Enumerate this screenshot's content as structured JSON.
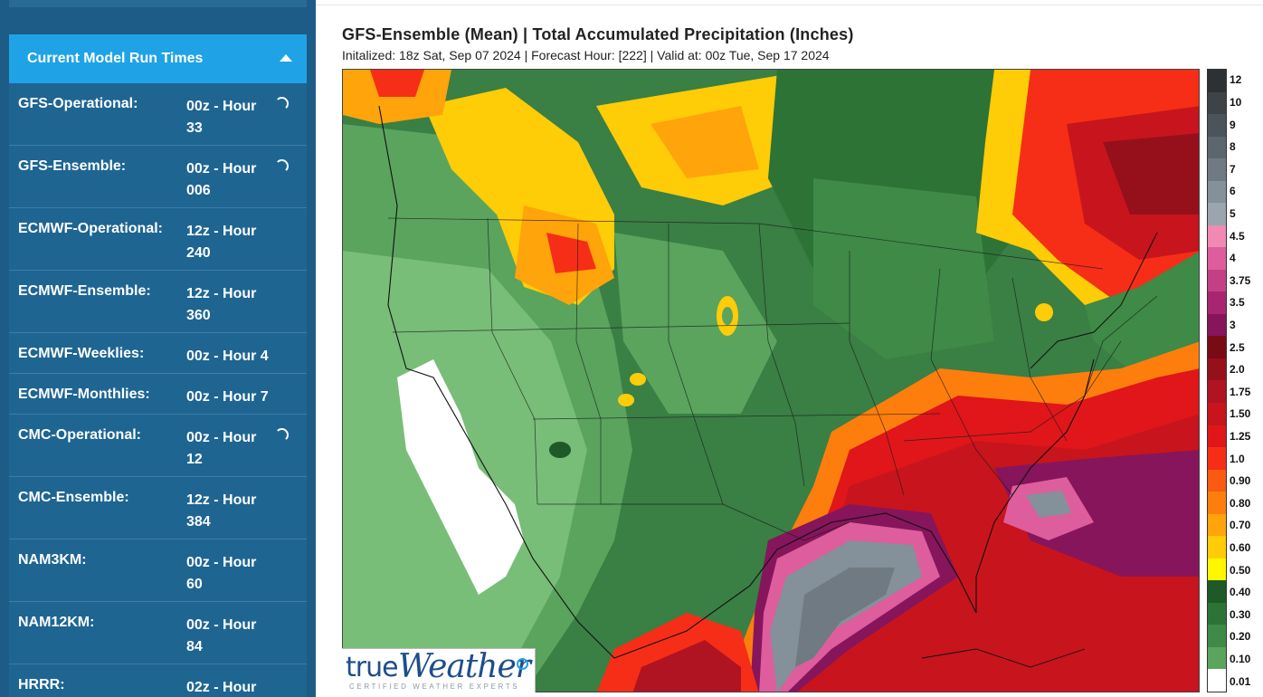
{
  "sidebar": {
    "panel_title": "Current Model Run Times",
    "rows": [
      {
        "name": "GFS-Operational:",
        "value": "00z - Hour 33",
        "loading": true
      },
      {
        "name": "GFS-Ensemble:",
        "value": "00z - Hour 006",
        "loading": true
      },
      {
        "name": "ECMWF-Operational:",
        "value": "12z - Hour 240",
        "loading": false
      },
      {
        "name": "ECMWF-Ensemble:",
        "value": "12z - Hour 360",
        "loading": false
      },
      {
        "name": "ECMWF-Weeklies:",
        "value": "00z - Hour 4",
        "loading": false
      },
      {
        "name": "ECMWF-Monthlies:",
        "value": "00z - Hour 7",
        "loading": false
      },
      {
        "name": "CMC-Operational:",
        "value": "00z - Hour 12",
        "loading": true
      },
      {
        "name": "CMC-Ensemble:",
        "value": "12z - Hour 384",
        "loading": false
      },
      {
        "name": "NAM3KM:",
        "value": "00z - Hour 60",
        "loading": false
      },
      {
        "name": "NAM12KM:",
        "value": "00z - Hour 84",
        "loading": false
      },
      {
        "name": "HRRR:",
        "value": "02z - Hour",
        "loading": false
      }
    ]
  },
  "map": {
    "title": "GFS-Ensemble (Mean) | Total Accumulated Precipitation (Inches)",
    "subtitle": "Initalized: 18z Sat, Sep 07 2024 | Forecast Hour: [222] | Valid at: 00z Tue, Sep 17 2024",
    "logo_word1": "true",
    "logo_word2": "Weather",
    "logo_tagline": "CERTIFIED WEATHER EXPERTS"
  },
  "legend": [
    {
      "label": "12",
      "color": "#2e3133"
    },
    {
      "label": "10",
      "color": "#3d4347"
    },
    {
      "label": "9",
      "color": "#4b545a"
    },
    {
      "label": "8",
      "color": "#5c666d"
    },
    {
      "label": "7",
      "color": "#6f7a82"
    },
    {
      "label": "6",
      "color": "#84909a"
    },
    {
      "label": "5",
      "color": "#9aa5ae"
    },
    {
      "label": "4.5",
      "color": "#f08ab5"
    },
    {
      "label": "4",
      "color": "#de5d9d"
    },
    {
      "label": "3.75",
      "color": "#c53f86"
    },
    {
      "label": "3.5",
      "color": "#a82671"
    },
    {
      "label": "3",
      "color": "#86155c"
    },
    {
      "label": "2.5",
      "color": "#7a0a14"
    },
    {
      "label": "2.0",
      "color": "#96101c"
    },
    {
      "label": "1.75",
      "color": "#b01422"
    },
    {
      "label": "1.50",
      "color": "#c8141c"
    },
    {
      "label": "1.25",
      "color": "#e0161a"
    },
    {
      "label": "1.0",
      "color": "#f62e17"
    },
    {
      "label": "0.90",
      "color": "#fa5a12"
    },
    {
      "label": "0.80",
      "color": "#fd7e0d"
    },
    {
      "label": "0.70",
      "color": "#ffa40a"
    },
    {
      "label": "0.60",
      "color": "#ffcc08"
    },
    {
      "label": "0.50",
      "color": "#fff700"
    },
    {
      "label": "0.40",
      "color": "#1e5a28"
    },
    {
      "label": "0.30",
      "color": "#2d7336"
    },
    {
      "label": "0.20",
      "color": "#3e8a46"
    },
    {
      "label": "0.10",
      "color": "#5aa45e"
    },
    {
      "label": "0.01",
      "color": "#ffffff"
    }
  ]
}
